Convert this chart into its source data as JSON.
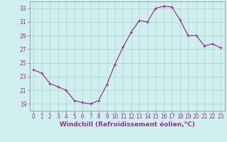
{
  "x": [
    0,
    1,
    2,
    3,
    4,
    5,
    6,
    7,
    8,
    9,
    10,
    11,
    12,
    13,
    14,
    15,
    16,
    17,
    18,
    19,
    20,
    21,
    22,
    23
  ],
  "y": [
    24.0,
    23.5,
    22.0,
    21.5,
    21.0,
    19.5,
    19.2,
    19.0,
    19.5,
    21.8,
    24.8,
    27.3,
    29.5,
    31.2,
    31.0,
    33.0,
    33.3,
    33.2,
    31.3,
    29.0,
    29.0,
    27.5,
    27.8,
    27.2
  ],
  "line_color": "#993399",
  "marker": "+",
  "marker_size": 3,
  "linewidth": 0.9,
  "bg_color": "#cff0ee",
  "grid_color": "#b0cfc8",
  "xlabel": "Windchill (Refroidissement éolien,°C)",
  "xlabel_color": "#993399",
  "tick_color": "#993399",
  "ylim": [
    18.0,
    34.0
  ],
  "xlim": [
    -0.5,
    23.5
  ],
  "yticks": [
    19,
    21,
    23,
    25,
    27,
    29,
    31,
    33
  ],
  "xticks": [
    0,
    1,
    2,
    3,
    4,
    5,
    6,
    7,
    8,
    9,
    10,
    11,
    12,
    13,
    14,
    15,
    16,
    17,
    18,
    19,
    20,
    21,
    22,
    23
  ],
  "tick_fontsize": 5.5,
  "xlabel_fontsize": 6.5,
  "xlabel_fontweight": "bold"
}
